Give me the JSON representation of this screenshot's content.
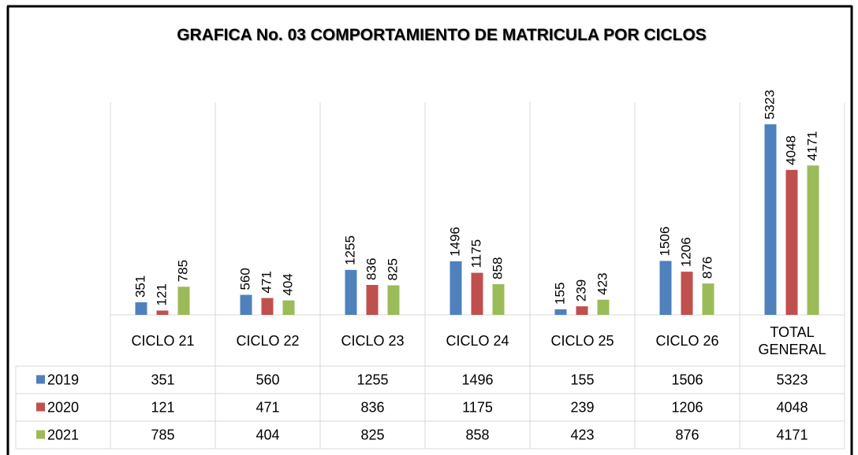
{
  "chart_data": {
    "type": "bar",
    "title": "GRAFICA No. 03 COMPORTAMIENTO DE MATRICULA POR CICLOS",
    "categories": [
      "CICLO 21",
      "CICLO 22",
      "CICLO 23",
      "CICLO 24",
      "CICLO 25",
      "CICLO 26",
      "TOTAL GENERAL"
    ],
    "series": [
      {
        "name": "2019",
        "color": "#4f81bd",
        "values": [
          351,
          560,
          1255,
          1496,
          155,
          1506,
          5323
        ]
      },
      {
        "name": "2020",
        "color": "#c0504d",
        "values": [
          121,
          471,
          836,
          1175,
          239,
          1206,
          4048
        ]
      },
      {
        "name": "2021",
        "color": "#9bbb59",
        "values": [
          785,
          404,
          825,
          858,
          423,
          876,
          4171
        ]
      }
    ],
    "ylim": [
      0,
      6000
    ]
  }
}
